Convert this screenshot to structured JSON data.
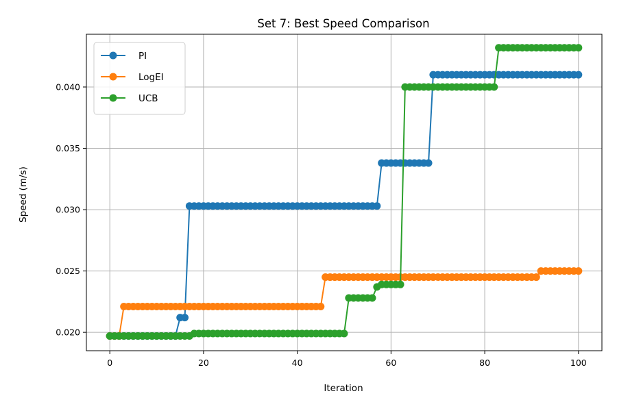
{
  "chart_data": {
    "type": "line",
    "title": "Set 7: Best Speed Comparison",
    "xlabel": "Iteration",
    "ylabel": "Speed (m/s)",
    "xlim": [
      -5,
      105
    ],
    "ylim": [
      0.0185,
      0.0443
    ],
    "xticks": [
      0,
      20,
      40,
      60,
      80,
      100
    ],
    "yticks": [
      0.02,
      0.025,
      0.03,
      0.035,
      0.04
    ],
    "ytick_labels": [
      "0.020",
      "0.025",
      "0.030",
      "0.035",
      "0.040"
    ],
    "grid": true,
    "legend_position": "top-left",
    "series": [
      {
        "name": "PI",
        "color": "#1f77b4",
        "steps": [
          [
            0,
            0.0197
          ],
          [
            15,
            0.0212
          ],
          [
            17,
            0.0303
          ],
          [
            58,
            0.0338
          ],
          [
            69,
            0.041
          ]
        ],
        "x_end": 100
      },
      {
        "name": "LogEI",
        "color": "#ff7f0e",
        "steps": [
          [
            0,
            0.0197
          ],
          [
            3,
            0.0221
          ],
          [
            46,
            0.0245
          ],
          [
            92,
            0.025
          ]
        ],
        "x_end": 100
      },
      {
        "name": "UCB",
        "color": "#2ca02c",
        "steps": [
          [
            0,
            0.0197
          ],
          [
            18,
            0.0199
          ],
          [
            51,
            0.0228
          ],
          [
            57,
            0.0237
          ],
          [
            58,
            0.0239
          ],
          [
            63,
            0.04
          ],
          [
            83,
            0.0432
          ]
        ],
        "x_end": 100
      }
    ]
  }
}
